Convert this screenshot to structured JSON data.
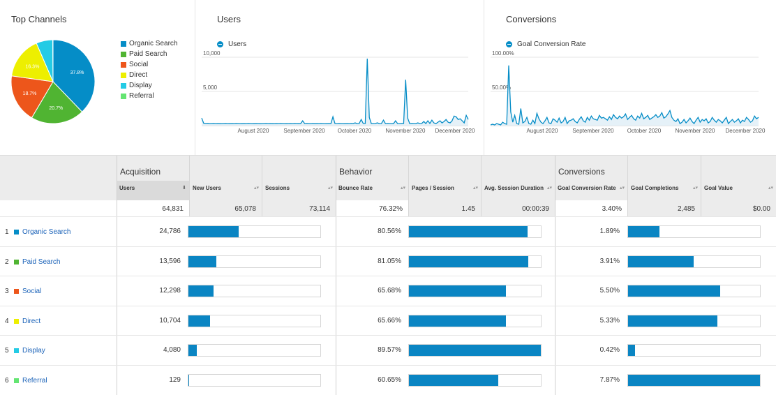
{
  "top_channels": {
    "title": "Top Channels",
    "legend": [
      {
        "label": "Organic Search",
        "color": "#058dc7",
        "share": 37.8
      },
      {
        "label": "Paid Search",
        "color": "#50b432",
        "share": 20.7
      },
      {
        "label": "Social",
        "color": "#ed561b",
        "share": 18.7
      },
      {
        "label": "Direct",
        "color": "#edef00",
        "share": 16.3
      },
      {
        "label": "Display",
        "color": "#24cbe5",
        "share": 6.4
      },
      {
        "label": "Referral",
        "color": "#64e572",
        "share": 0.1
      }
    ],
    "slice_labels": [
      "37.8%",
      "20.7%",
      "18.7%",
      "16.3%"
    ]
  },
  "users_chart": {
    "title": "Users",
    "legend": "Users",
    "y_ticks": [
      "10,000",
      "5,000"
    ],
    "x_ticks": [
      "August 2020",
      "September 2020",
      "October 2020",
      "November 2020",
      "December 2020"
    ],
    "color": "#058dc7"
  },
  "conversions_chart": {
    "title": "Conversions",
    "legend": "Goal Conversion Rate",
    "y_ticks": [
      "100.00%",
      "50.00%"
    ],
    "x_ticks": [
      "August 2020",
      "September 2020",
      "October 2020",
      "November 2020",
      "December 2020"
    ],
    "color": "#058dc7"
  },
  "chart_data": [
    {
      "type": "pie",
      "title": "Top Channels",
      "categories": [
        "Organic Search",
        "Paid Search",
        "Social",
        "Direct",
        "Display",
        "Referral"
      ],
      "values": [
        37.8,
        20.7,
        18.7,
        16.3,
        6.4,
        0.1
      ]
    },
    {
      "type": "area",
      "title": "Users",
      "series": [
        {
          "name": "Users",
          "values": [
            1100,
            350,
            320,
            330,
            300,
            310,
            320,
            300,
            310,
            290,
            300,
            310,
            320,
            300,
            290,
            310,
            300,
            320,
            310,
            300,
            290,
            310,
            300,
            320,
            310,
            300,
            290,
            310,
            300,
            280,
            300,
            310,
            320,
            300,
            310,
            290,
            300,
            310,
            300,
            320,
            310,
            300,
            290,
            300,
            310,
            300,
            320,
            310,
            290,
            300,
            700,
            300,
            320,
            310,
            300,
            320,
            290,
            310,
            300,
            320,
            310,
            300,
            290,
            310,
            300,
            1300,
            310,
            300,
            320,
            310,
            300,
            290,
            310,
            300,
            320,
            310,
            400,
            300,
            310,
            900,
            320,
            310,
            9800,
            1200,
            300,
            310,
            320,
            400,
            300,
            310,
            800,
            300,
            320,
            310,
            300,
            290,
            700,
            310,
            300,
            320,
            310,
            6700,
            1100,
            300,
            320,
            310,
            300,
            400,
            310,
            320,
            600,
            300,
            700,
            320,
            800,
            400,
            300,
            500,
            700,
            400,
            600,
            900,
            500,
            400,
            700,
            1400,
            1300,
            900,
            1000,
            700,
            400,
            1500,
            900
          ]
        }
      ],
      "ylim": [
        0,
        10000
      ]
    },
    {
      "type": "area",
      "title": "Conversions",
      "series": [
        {
          "name": "Goal Conversion Rate",
          "values": [
            1,
            2,
            1,
            3,
            2,
            1,
            5,
            3,
            2,
            88,
            20,
            5,
            15,
            3,
            2,
            25,
            4,
            6,
            12,
            3,
            2,
            8,
            3,
            18,
            10,
            5,
            3,
            7,
            12,
            4,
            3,
            10,
            8,
            5,
            11,
            4,
            6,
            12,
            3,
            7,
            8,
            10,
            6,
            4,
            9,
            13,
            7,
            5,
            12,
            8,
            14,
            10,
            9,
            8,
            15,
            11,
            12,
            10,
            8,
            13,
            9,
            16,
            12,
            10,
            14,
            11,
            13,
            17,
            9,
            12,
            15,
            10,
            8,
            14,
            11,
            18,
            10,
            12,
            15,
            9,
            11,
            13,
            16,
            12,
            14,
            19,
            11,
            13,
            17,
            22,
            12,
            8,
            6,
            10,
            3,
            5,
            9,
            4,
            7,
            11,
            6,
            3,
            8,
            12,
            5,
            9,
            7,
            10,
            4,
            6,
            12,
            8,
            5,
            9,
            7,
            4,
            8,
            12,
            3,
            6,
            9,
            5,
            7,
            10,
            4,
            8,
            6,
            12,
            9,
            5,
            7,
            14,
            10,
            12
          ]
        }
      ],
      "ylim": [
        0,
        100
      ]
    }
  ],
  "table": {
    "groups": [
      "Acquisition",
      "Behavior",
      "Conversions"
    ],
    "columns": [
      "Users",
      "New Users",
      "Sessions",
      "Bounce Rate",
      "Pages / Session",
      "Avg. Session Duration",
      "Goal Conversion Rate",
      "Goal Completions",
      "Goal Value"
    ],
    "sort_arrow": "⬇",
    "neutral_arrow": "▴▾",
    "totals": [
      "64,831",
      "65,078",
      "73,114",
      "76.32%",
      "1.45",
      "00:00:39",
      "3.40%",
      "2,485",
      "$0.00"
    ],
    "rows": [
      {
        "idx": "1",
        "name": "Organic Search",
        "color": "#058dc7",
        "users": "24,786",
        "users_frac": 0.38,
        "bounce": "80.56%",
        "bounce_frac": 0.8056,
        "conv": "1.89%",
        "conv_frac": 0.24
      },
      {
        "idx": "2",
        "name": "Paid Search",
        "color": "#50b432",
        "users": "13,596",
        "users_frac": 0.21,
        "bounce": "81.05%",
        "bounce_frac": 0.8105,
        "conv": "3.91%",
        "conv_frac": 0.497
      },
      {
        "idx": "3",
        "name": "Social",
        "color": "#ed561b",
        "users": "12,298",
        "users_frac": 0.19,
        "bounce": "65.68%",
        "bounce_frac": 0.6568,
        "conv": "5.50%",
        "conv_frac": 0.699
      },
      {
        "idx": "4",
        "name": "Direct",
        "color": "#edef00",
        "users": "10,704",
        "users_frac": 0.165,
        "bounce": "65.66%",
        "bounce_frac": 0.6566,
        "conv": "5.33%",
        "conv_frac": 0.677
      },
      {
        "idx": "5",
        "name": "Display",
        "color": "#24cbe5",
        "users": "4,080",
        "users_frac": 0.063,
        "bounce": "89.57%",
        "bounce_frac": 0.8957,
        "conv": "0.42%",
        "conv_frac": 0.053
      },
      {
        "idx": "6",
        "name": "Referral",
        "color": "#64e572",
        "users": "129",
        "users_frac": 0.002,
        "bounce": "60.65%",
        "bounce_frac": 0.6065,
        "conv": "7.87%",
        "conv_frac": 1.0
      }
    ]
  }
}
